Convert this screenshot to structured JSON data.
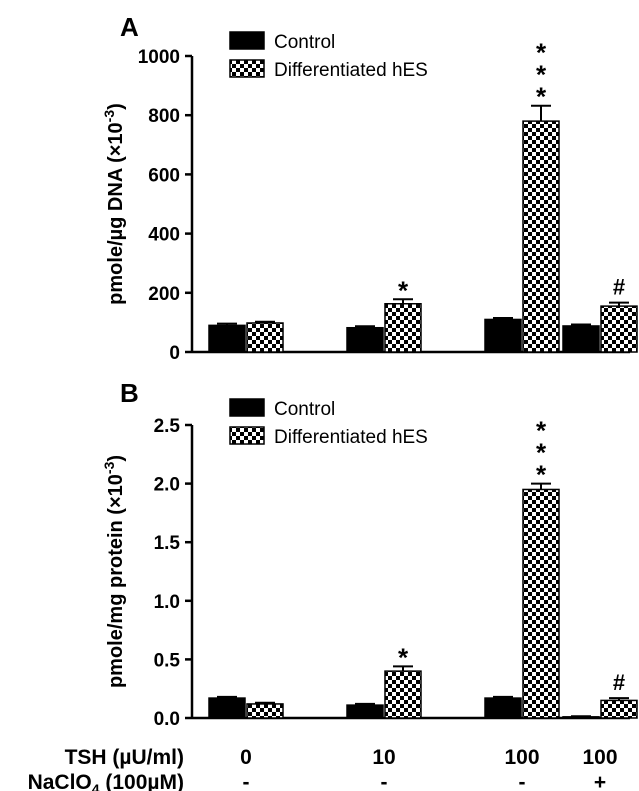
{
  "chart_data": [
    {
      "type": "bar",
      "panel_label": "A",
      "ylabel": "pmole/µg DNA (×10",
      "ylabel_sup": "-3",
      "ylabel_close": ")",
      "ylim": [
        0,
        1000
      ],
      "yticks": [
        "0",
        "200",
        "400",
        "600",
        "800",
        "1000"
      ],
      "ytick_values": [
        0,
        200,
        400,
        600,
        800,
        1000
      ],
      "categories": [
        "0",
        "10",
        "100",
        "100"
      ],
      "legend_placement": "top-left",
      "series": [
        {
          "name": "Control",
          "pattern": "solid",
          "values": [
            90,
            82,
            110,
            88
          ],
          "errors": [
            6,
            5,
            5,
            5
          ]
        },
        {
          "name": "Differentiated hES",
          "pattern": "checker",
          "values": [
            98,
            163,
            780,
            155
          ],
          "errors": [
            4,
            15,
            52,
            12
          ]
        }
      ],
      "annotations": [
        {
          "category_index": 1,
          "series_index": 1,
          "text": "*"
        },
        {
          "category_index": 2,
          "series_index": 1,
          "text": "***"
        },
        {
          "category_index": 3,
          "series_index": 1,
          "text": "#"
        }
      ]
    },
    {
      "type": "bar",
      "panel_label": "B",
      "ylabel": "pmole/mg protein (×10",
      "ylabel_sup": "-3",
      "ylabel_close": ")",
      "ylim": [
        0,
        2.5
      ],
      "yticks": [
        "0.0",
        "0.5",
        "1.0",
        "1.5",
        "2.0",
        "2.5"
      ],
      "ytick_values": [
        0,
        0.5,
        1.0,
        1.5,
        2.0,
        2.5
      ],
      "categories": [
        "0",
        "10",
        "100",
        "100"
      ],
      "legend_placement": "top-left",
      "series": [
        {
          "name": "Control",
          "pattern": "solid",
          "values": [
            0.17,
            0.11,
            0.17,
            0.01
          ],
          "errors": [
            0.01,
            0.01,
            0.01,
            0.005
          ]
        },
        {
          "name": "Differentiated hES",
          "pattern": "checker",
          "values": [
            0.12,
            0.4,
            1.95,
            0.15
          ],
          "errors": [
            0.01,
            0.04,
            0.05,
            0.02
          ]
        }
      ],
      "annotations": [
        {
          "category_index": 1,
          "series_index": 1,
          "text": "*"
        },
        {
          "category_index": 2,
          "series_index": 1,
          "text": "***"
        },
        {
          "category_index": 3,
          "series_index": 1,
          "text": "#"
        }
      ]
    }
  ],
  "conditions": [
    {
      "label": "TSH (µU/ml)",
      "values": [
        "0",
        "10",
        "100",
        "100"
      ]
    },
    {
      "label": "NaClO",
      "label_sub": "4",
      "label_suffix": " (100µM)",
      "values": [
        "-",
        "-",
        "-",
        "+"
      ]
    }
  ]
}
